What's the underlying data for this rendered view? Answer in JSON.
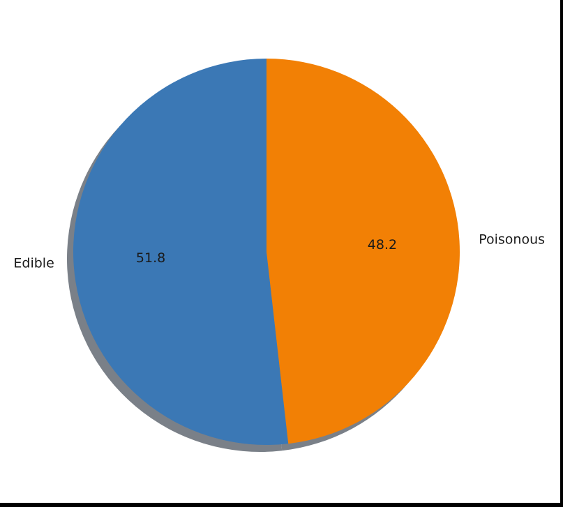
{
  "chart_data": {
    "type": "pie",
    "title": "",
    "categories": [
      "Edible",
      "Poisonous"
    ],
    "values": [
      51.8,
      48.2
    ],
    "value_labels": [
      "51.8",
      "48.2"
    ],
    "colors": [
      "#3b78b5",
      "#f28005"
    ],
    "start_angle": "top (12 o'clock)",
    "direction": "counterclockwise",
    "shadow": true,
    "shadow_color": "#7a8088",
    "legend": "none"
  }
}
